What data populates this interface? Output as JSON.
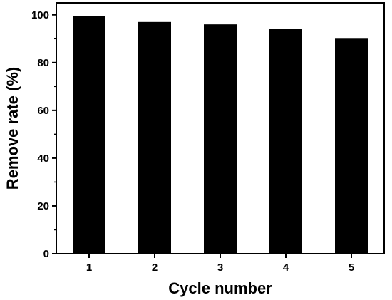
{
  "chart_data": {
    "type": "bar",
    "categories": [
      "1",
      "2",
      "3",
      "4",
      "5"
    ],
    "values": [
      99.5,
      97,
      96,
      94,
      90
    ],
    "xlabel": "Cycle number",
    "ylabel": "Remove rate (%)",
    "ylim": [
      0,
      105
    ],
    "yticks": [
      0,
      20,
      40,
      60,
      80,
      100
    ],
    "grid": false,
    "bar_color": "#000000"
  }
}
